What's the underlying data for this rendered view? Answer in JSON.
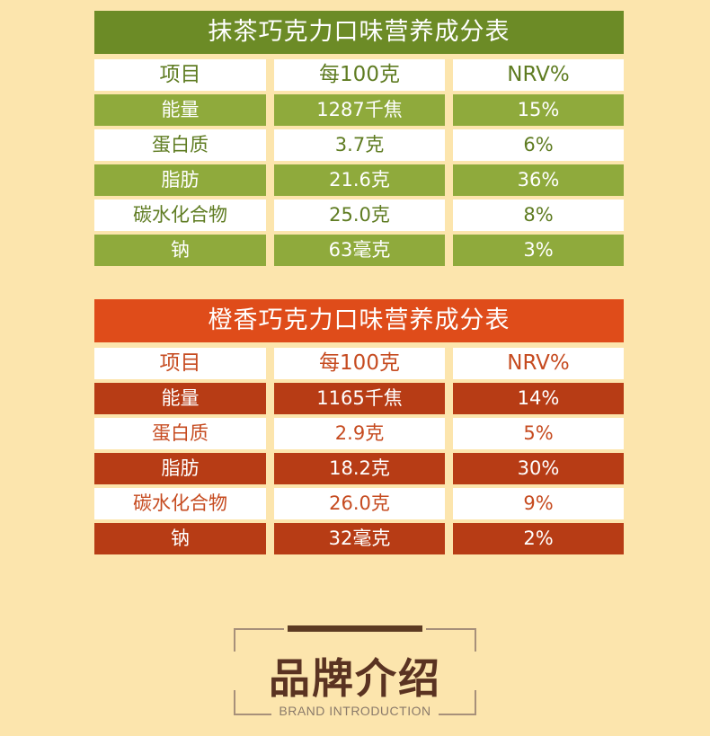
{
  "tables": [
    {
      "title": "抹茶巧克力口味营养成分表",
      "header": [
        "项目",
        "每100克",
        "NRV%"
      ],
      "rows": [
        [
          "能量",
          "1287千焦",
          "15%"
        ],
        [
          "蛋白质",
          "3.7克",
          "6%"
        ],
        [
          "脂肪",
          "21.6克",
          "36%"
        ],
        [
          "碳水化合物",
          "25.0克",
          "8%"
        ],
        [
          "钠",
          "63毫克",
          "3%"
        ]
      ]
    },
    {
      "title": "橙香巧克力口味营养成分表",
      "header": [
        "项目",
        "每100克",
        "NRV%"
      ],
      "rows": [
        [
          "能量",
          "1165千焦",
          "14%"
        ],
        [
          "蛋白质",
          "2.9克",
          "5%"
        ],
        [
          "脂肪",
          "18.2克",
          "30%"
        ],
        [
          "碳水化合物",
          "26.0克",
          "9%"
        ],
        [
          "钠",
          "32毫克",
          "2%"
        ]
      ]
    }
  ],
  "brand_section": {
    "title": "品牌介绍",
    "subtitle": "BRAND INTRODUCTION"
  },
  "colors": {
    "background": "#fce5ad",
    "green_header": "#6c8b26",
    "green_row": "#8faa3c",
    "orange_header": "#df4c1a",
    "orange_row": "#b73c15",
    "brand_text": "#5a3322"
  }
}
